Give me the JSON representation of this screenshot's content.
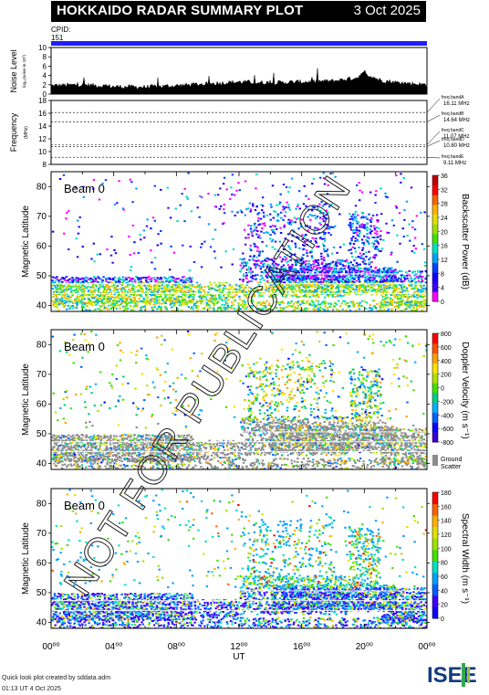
{
  "header": {
    "title": "HOKKAIDO RADAR SUMMARY PLOT",
    "date": "3 Oct 2025"
  },
  "cpid": {
    "label": "CPID:",
    "value": "151"
  },
  "noise": {
    "ylabel": "Noise Level",
    "ylabel_small": "log₁₀(noise in 10⁰)",
    "ticks": [
      "0",
      "2",
      "4",
      "6",
      "8",
      "10"
    ]
  },
  "frequency": {
    "ylabel": "Frequency",
    "unit": "(MHz)",
    "ticks": [
      "8",
      "10",
      "12",
      "14",
      "16",
      "18"
    ],
    "bands": [
      {
        "name": "freq bandA",
        "value": "16.11 MHz"
      },
      {
        "name": "freq bandB",
        "value": "14.64 MHz"
      },
      {
        "name": "freq bandC",
        "value": "11.07 MHz"
      },
      {
        "name": "freq bandD",
        "value": "10.80 MHz"
      },
      {
        "name": "freq bandE",
        "value": "9.11 MHz"
      }
    ]
  },
  "panels": [
    {
      "beam": "Beam 0",
      "ylabel": "Magnetic Latitude",
      "cbar_label": "Backscatter Power (dB)",
      "cbar_ticks": [
        "0",
        "4",
        "8",
        "12",
        "16",
        "20",
        "24",
        "28",
        "32",
        "36"
      ]
    },
    {
      "beam": "Beam 0",
      "ylabel": "Magnetic Latitude",
      "cbar_label": "Doppler Velocity (m s⁻¹)",
      "cbar_ticks": [
        "-800",
        "-600",
        "-400",
        "-200",
        "0",
        "200",
        "400",
        "600",
        "800"
      ],
      "ground_scatter": "Ground Scatter"
    },
    {
      "beam": "Beam 0",
      "ylabel": "Magnetic Latitude",
      "cbar_label": "Spectral Width (m s⁻¹)",
      "cbar_ticks": [
        "0",
        "20",
        "40",
        "60",
        "80",
        "100",
        "120",
        "140",
        "160",
        "180"
      ]
    }
  ],
  "lat_ticks": [
    "40",
    "50",
    "60",
    "70",
    "80"
  ],
  "time_ticks": [
    "00⁰⁰",
    "04⁰⁰",
    "08⁰⁰",
    "12⁰⁰",
    "16⁰⁰",
    "20⁰⁰",
    "00⁰⁰"
  ],
  "xlabel": "UT",
  "watermark": "NOT FOR PUBLICATION",
  "footer": {
    "line1": "Quick look plot created by sddata.adm",
    "line2": "01:13 UT  4 Oct 2025"
  },
  "logo_text": "ISEE",
  "colors": {
    "title_bg": "#000000",
    "cpid_bar": "#1f1fff",
    "ground_scatter": "#8c8c8c"
  },
  "chart_data": [
    {
      "type": "area",
      "title": "Noise Level",
      "x_range": [
        0,
        24
      ],
      "ylim": [
        0,
        10
      ],
      "x": [
        0,
        2,
        4,
        6,
        8,
        10,
        12,
        14,
        16,
        18,
        19.5,
        20,
        21,
        22,
        24
      ],
      "values": [
        1.8,
        2.0,
        1.6,
        1.5,
        1.8,
        2.2,
        2.6,
        2.4,
        2.6,
        2.8,
        3.5,
        4.5,
        3.0,
        2.5,
        2.0
      ]
    },
    {
      "type": "line",
      "title": "Frequency",
      "ylim": [
        8,
        18
      ],
      "x_range": [
        0,
        24
      ],
      "series": [
        {
          "name": "freq bandA",
          "values": [
            16.11
          ]
        },
        {
          "name": "freq bandB",
          "values": [
            14.64
          ]
        },
        {
          "name": "freq bandC",
          "values": [
            11.07
          ]
        },
        {
          "name": "freq bandD",
          "values": [
            10.8
          ]
        },
        {
          "name": "freq bandE",
          "values": [
            9.11
          ]
        }
      ]
    },
    {
      "type": "heatmap",
      "title": "Backscatter Power (dB)",
      "x_range": [
        0,
        24
      ],
      "ylim": [
        38,
        85
      ],
      "zlim": [
        0,
        36
      ]
    },
    {
      "type": "heatmap",
      "title": "Doppler Velocity (m s⁻¹)",
      "x_range": [
        0,
        24
      ],
      "ylim": [
        38,
        85
      ],
      "zlim": [
        -800,
        800
      ]
    },
    {
      "type": "heatmap",
      "title": "Spectral Width (m s⁻¹)",
      "x_range": [
        0,
        24
      ],
      "ylim": [
        38,
        85
      ],
      "zlim": [
        0,
        180
      ]
    }
  ]
}
